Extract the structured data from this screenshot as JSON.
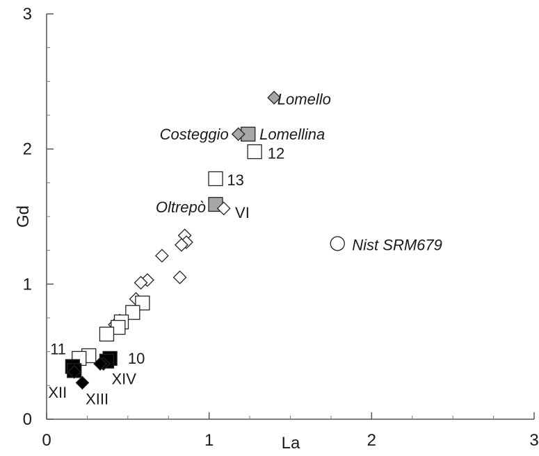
{
  "chart_data": {
    "type": "scatter",
    "title": "",
    "xlabel": "La",
    "ylabel": "Gd",
    "xlim": [
      0,
      3
    ],
    "ylim": [
      0,
      3
    ],
    "x_ticks": [
      "0",
      "1",
      "2",
      "3"
    ],
    "y_ticks": [
      "0",
      "1",
      "2",
      "3"
    ],
    "grid": false,
    "legend": "none",
    "colors": {
      "black": "#000000",
      "grey": "#a6a6a6",
      "white": "#ffffff",
      "stroke": "#222222"
    },
    "series": [
      {
        "marker": "diamond",
        "fill": "white",
        "points": [
          [
            0.85,
            1.36
          ],
          [
            0.86,
            1.31
          ],
          [
            0.83,
            1.29
          ],
          [
            0.71,
            1.21
          ],
          [
            0.62,
            1.03
          ],
          [
            0.58,
            1.01
          ],
          [
            0.82,
            1.05
          ],
          [
            0.55,
            0.89
          ],
          [
            0.45,
            0.73
          ],
          [
            0.42,
            0.7
          ],
          [
            0.22,
            0.45
          ],
          [
            0.2,
            0.44
          ]
        ]
      },
      {
        "marker": "square",
        "fill": "white",
        "points": [
          [
            1.28,
            1.98
          ],
          [
            1.04,
            1.78
          ],
          [
            0.59,
            0.86
          ],
          [
            0.53,
            0.79
          ],
          [
            0.46,
            0.72
          ],
          [
            0.44,
            0.68
          ],
          [
            0.37,
            0.63
          ],
          [
            0.26,
            0.47
          ],
          [
            0.2,
            0.45
          ]
        ]
      },
      {
        "marker": "square",
        "fill": "grey",
        "points": [
          [
            1.24,
            2.11
          ],
          [
            1.04,
            1.59
          ]
        ]
      },
      {
        "marker": "diamond",
        "fill": "grey",
        "points": [
          [
            1.4,
            2.38
          ],
          [
            1.18,
            2.11
          ]
        ]
      },
      {
        "marker": "diamond",
        "fill": "white",
        "points": [
          [
            1.09,
            1.56
          ]
        ]
      },
      {
        "marker": "circle",
        "fill": "white",
        "points": [
          [
            1.79,
            1.3
          ]
        ]
      },
      {
        "marker": "square",
        "fill": "black",
        "points": [
          [
            0.39,
            0.45
          ],
          [
            0.37,
            0.43
          ],
          [
            0.16,
            0.39
          ],
          [
            0.17,
            0.36
          ]
        ]
      },
      {
        "marker": "diamond",
        "fill": "black",
        "points": [
          [
            0.35,
            0.41
          ],
          [
            0.33,
            0.41
          ],
          [
            0.22,
            0.27
          ],
          [
            0.17,
            0.35
          ]
        ]
      }
    ],
    "annotations": [
      {
        "text": "Lomello",
        "x": 1.42,
        "y": 2.33,
        "italic": true,
        "anchor": "start"
      },
      {
        "text": "Costeggio",
        "x": 1.12,
        "y": 2.07,
        "italic": true,
        "anchor": "end"
      },
      {
        "text": "Lomellina",
        "x": 1.31,
        "y": 2.07,
        "italic": true,
        "anchor": "start"
      },
      {
        "text": "12",
        "x": 1.36,
        "y": 1.93,
        "italic": false,
        "anchor": "start"
      },
      {
        "text": "13",
        "x": 1.11,
        "y": 1.73,
        "italic": false,
        "anchor": "start"
      },
      {
        "text": "Oltrepò",
        "x": 0.98,
        "y": 1.53,
        "italic": true,
        "anchor": "end"
      },
      {
        "text": "VI",
        "x": 1.16,
        "y": 1.49,
        "italic": false,
        "anchor": "start"
      },
      {
        "text": "Nist SRM679",
        "x": 1.88,
        "y": 1.25,
        "italic": true,
        "anchor": "start"
      },
      {
        "text": "11",
        "x": 0.12,
        "y": 0.48,
        "italic": false,
        "anchor": "end"
      },
      {
        "text": "10",
        "x": 0.5,
        "y": 0.41,
        "italic": false,
        "anchor": "start"
      },
      {
        "text": "XIV",
        "x": 0.4,
        "y": 0.26,
        "italic": false,
        "anchor": "start"
      },
      {
        "text": "XII",
        "x": 0.01,
        "y": 0.16,
        "italic": false,
        "anchor": "start"
      },
      {
        "text": "XIII",
        "x": 0.24,
        "y": 0.11,
        "italic": false,
        "anchor": "start"
      }
    ]
  }
}
